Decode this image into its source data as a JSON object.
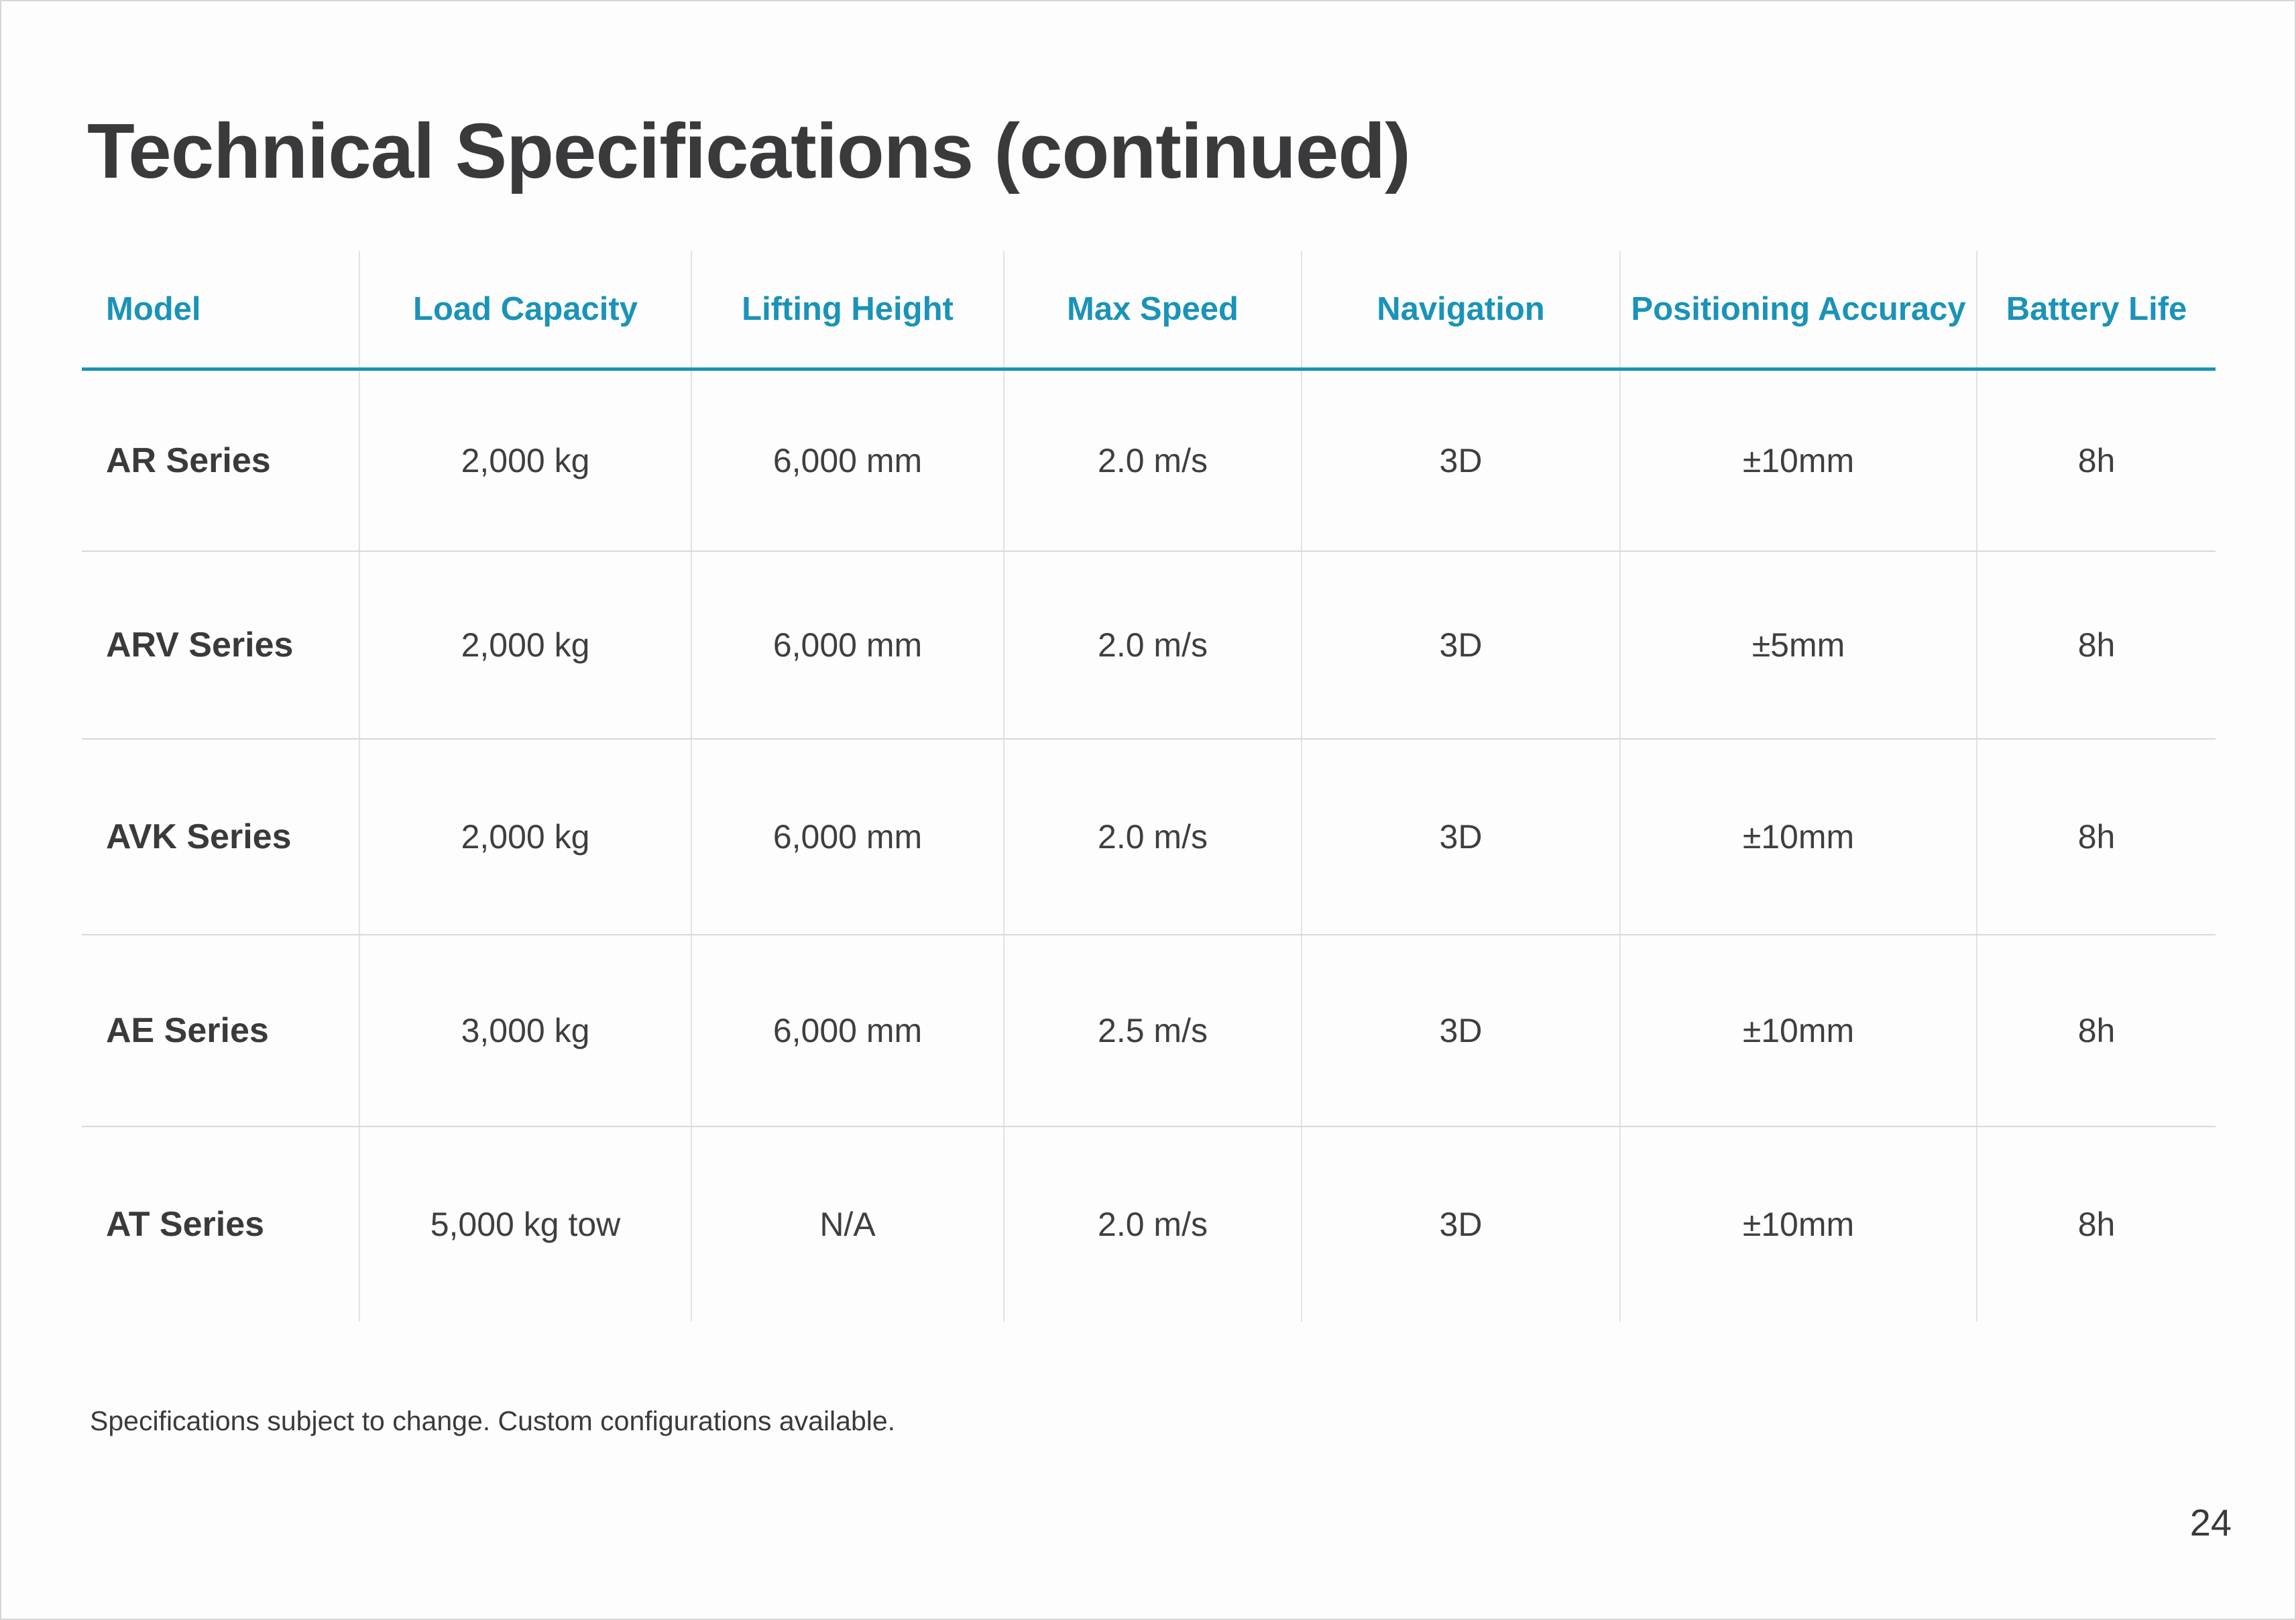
{
  "page": {
    "title": "Technical Specifications (continued)",
    "footnote": "Specifications subject to change. Custom configurations available.",
    "page_number": "24"
  },
  "colors": {
    "accent": "#1a93b8",
    "text": "#3a3a3c",
    "rule": "#e2e2e2"
  },
  "table": {
    "headers": [
      "Model",
      "Load Capacity",
      "Lifting Height",
      "Max Speed",
      "Navigation",
      "Positioning Accuracy",
      "Battery Life"
    ],
    "rows": [
      [
        "AR Series",
        "2,000 kg",
        "6,000 mm",
        "2.0 m/s",
        "3D",
        "±10mm",
        "8h"
      ],
      [
        "ARV Series",
        "2,000 kg",
        "6,000 mm",
        "2.0 m/s",
        "3D",
        "±5mm",
        "8h"
      ],
      [
        "AVK Series",
        "2,000 kg",
        "6,000 mm",
        "2.0 m/s",
        "3D",
        "±10mm",
        "8h"
      ],
      [
        "AE Series",
        "3,000 kg",
        "6,000 mm",
        "2.5 m/s",
        "3D",
        "±10mm",
        "8h"
      ],
      [
        "AT Series",
        "5,000 kg tow",
        "N/A",
        "2.0 m/s",
        "3D",
        "±10mm",
        "8h"
      ]
    ]
  }
}
